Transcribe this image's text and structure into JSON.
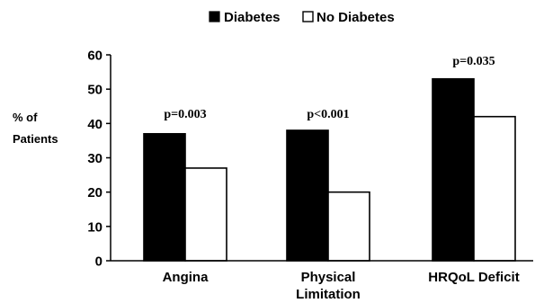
{
  "chart_data": {
    "type": "bar",
    "categories": [
      "Angina",
      "Physical Limitation",
      "HRQoL Deficit"
    ],
    "category_labels": [
      [
        "Angina"
      ],
      [
        "Physical",
        "Limitation"
      ],
      [
        "HRQoL Deficit"
      ]
    ],
    "series": [
      {
        "name": "Diabetes",
        "values": [
          37,
          38,
          53
        ],
        "color": "#000000"
      },
      {
        "name": "No Diabetes",
        "values": [
          27,
          20,
          42
        ],
        "color": "#ffffff"
      }
    ],
    "annotations": [
      "p=0.003",
      "p<0.001",
      "p=0.035"
    ],
    "ylabel": [
      "% of",
      "Patients"
    ],
    "ylim": [
      0,
      60
    ],
    "yticks": [
      0,
      10,
      20,
      30,
      40,
      50,
      60
    ],
    "legend_position": "top-center",
    "grid": false
  }
}
